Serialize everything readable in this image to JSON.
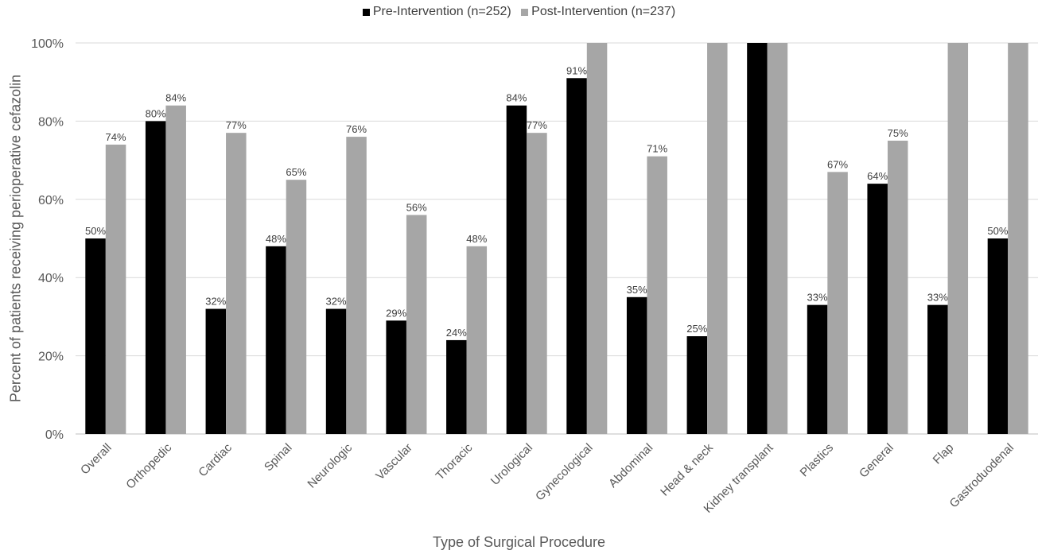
{
  "chart_data": {
    "type": "bar",
    "title": "",
    "xlabel": "Type of Surgical Procedure",
    "ylabel": "Percent of patients receiving perioperative cefazolin",
    "ylim": [
      0,
      100
    ],
    "yticks": [
      "0%",
      "20%",
      "40%",
      "60%",
      "80%",
      "100%"
    ],
    "grid": true,
    "legend_position": "top-center",
    "categories": [
      "Overall",
      "Orthopedic",
      "Cardiac",
      "Spinal",
      "Neurologic",
      "Vascular",
      "Thoracic",
      "Urological",
      "Gynecological",
      "Abdominal",
      "Head & neck",
      "Kidney transplant",
      "Plastics",
      "General",
      "Flap",
      "Gastroduodenal"
    ],
    "series": [
      {
        "name": "Pre-Intervention (n=252)",
        "color": "#000000",
        "values": [
          50,
          80,
          32,
          48,
          32,
          29,
          24,
          84,
          91,
          35,
          25,
          100,
          33,
          64,
          33,
          50
        ],
        "labels": [
          "50%",
          "80%",
          "32%",
          "48%",
          "32%",
          "29%",
          "24%",
          "84%",
          "91%",
          "35%",
          "25%",
          "",
          "33%",
          "64%",
          "33%",
          "50%"
        ]
      },
      {
        "name": "Post-Intervention (n=237)",
        "color": "#a6a6a6",
        "values": [
          74,
          84,
          77,
          65,
          76,
          56,
          48,
          77,
          100,
          71,
          100,
          100,
          67,
          75,
          100,
          100
        ],
        "labels": [
          "74%",
          "84%",
          "77%",
          "65%",
          "76%",
          "56%",
          "48%",
          "77%",
          "",
          "71%",
          "",
          "",
          "67%",
          "75%",
          "",
          ""
        ]
      }
    ]
  }
}
